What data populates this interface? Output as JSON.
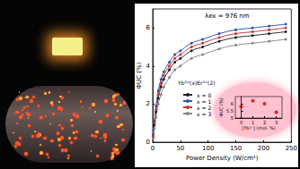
{
  "chart_data": [
    {
      "type": "line",
      "x_label": "Power Density (W/cm²)",
      "y_label": "ΦUC (%)",
      "annotations": [
        "λex = 976 nm"
      ],
      "legend_title": "Yb³⁺(x)Er³⁺(2)",
      "legend": "left",
      "marker": "circle",
      "grid": false,
      "x": [
        1,
        3,
        6,
        10,
        15,
        20,
        30,
        40,
        50,
        70,
        90,
        120,
        150,
        180,
        210,
        240
      ],
      "series": [
        {
          "name": "x = 0",
          "color": "#222222",
          "values": [
            0.3,
            0.9,
            1.6,
            2.3,
            2.9,
            3.3,
            3.8,
            4.2,
            4.4,
            4.8,
            5.0,
            5.3,
            5.5,
            5.6,
            5.7,
            5.8
          ]
        },
        {
          "name": "x = 1",
          "color": "#3355aa",
          "values": [
            0.4,
            1.1,
            1.9,
            2.7,
            3.3,
            3.7,
            4.2,
            4.6,
            4.8,
            5.2,
            5.4,
            5.7,
            5.9,
            6.0,
            6.1,
            6.2
          ]
        },
        {
          "name": "x = 2",
          "color": "#cc3333",
          "values": [
            0.3,
            1.0,
            1.7,
            2.5,
            3.1,
            3.5,
            4.0,
            4.4,
            4.6,
            5.0,
            5.2,
            5.5,
            5.7,
            5.8,
            5.9,
            6.0
          ]
        },
        {
          "name": "x = 3",
          "color": "#888888",
          "values": [
            0.2,
            0.7,
            1.3,
            2.0,
            2.5,
            2.9,
            3.4,
            3.8,
            4.0,
            4.4,
            4.6,
            4.9,
            5.1,
            5.2,
            5.3,
            5.4
          ]
        }
      ],
      "xlim": [
        0,
        250
      ],
      "xticks": [
        0,
        50,
        100,
        150,
        200,
        250
      ],
      "ylim": [
        0,
        7
      ],
      "yticks": [
        0,
        2,
        4,
        6
      ]
    },
    {
      "type": "scatter",
      "x_label": "[Yb³⁺] (mol. %)",
      "y_label": "ΦUC (%)",
      "marker": "circle",
      "color": "#cc0000",
      "x": [
        0,
        1,
        2,
        3
      ],
      "values": [
        5.8,
        6.2,
        6.0,
        5.4
      ],
      "xlim": [
        -0.5,
        3.5
      ],
      "xticks": [
        0,
        1,
        2,
        3
      ],
      "ylim": [
        5,
        6.5
      ],
      "yticks": [
        5,
        5.5,
        6
      ]
    }
  ]
}
